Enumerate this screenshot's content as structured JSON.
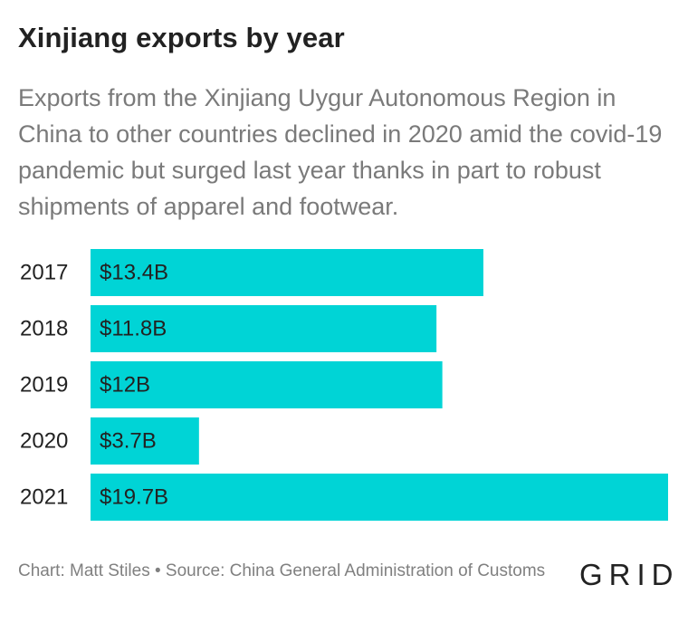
{
  "title": "Xinjiang exports by year",
  "subtitle": "Exports from the Xinjiang Uygur Autonomous Region in China to other countries declined in 2020 amid the covid-19 pandemic but surged last year thanks in part to robust shipments of apparel and footwear.",
  "footer": {
    "credit": "Chart: Matt Stiles • Source: China General Administration of Customs"
  },
  "logo": "GRID",
  "colors": {
    "bar": "#00d4d6",
    "text": "#222222",
    "subtitle": "#7a7a7a"
  },
  "chart_data": {
    "type": "bar",
    "orientation": "horizontal",
    "categories": [
      "2017",
      "2018",
      "2019",
      "2020",
      "2021"
    ],
    "values": [
      13.4,
      11.8,
      12,
      3.7,
      19.7
    ],
    "data_labels": [
      "$13.4B",
      "$11.8B",
      "$12B",
      "$3.7B",
      "$19.7B"
    ],
    "title": "Xinjiang exports by year",
    "xlabel": "",
    "ylabel": "",
    "xlim": [
      0,
      19.7
    ],
    "grid": false,
    "legend": "none"
  }
}
